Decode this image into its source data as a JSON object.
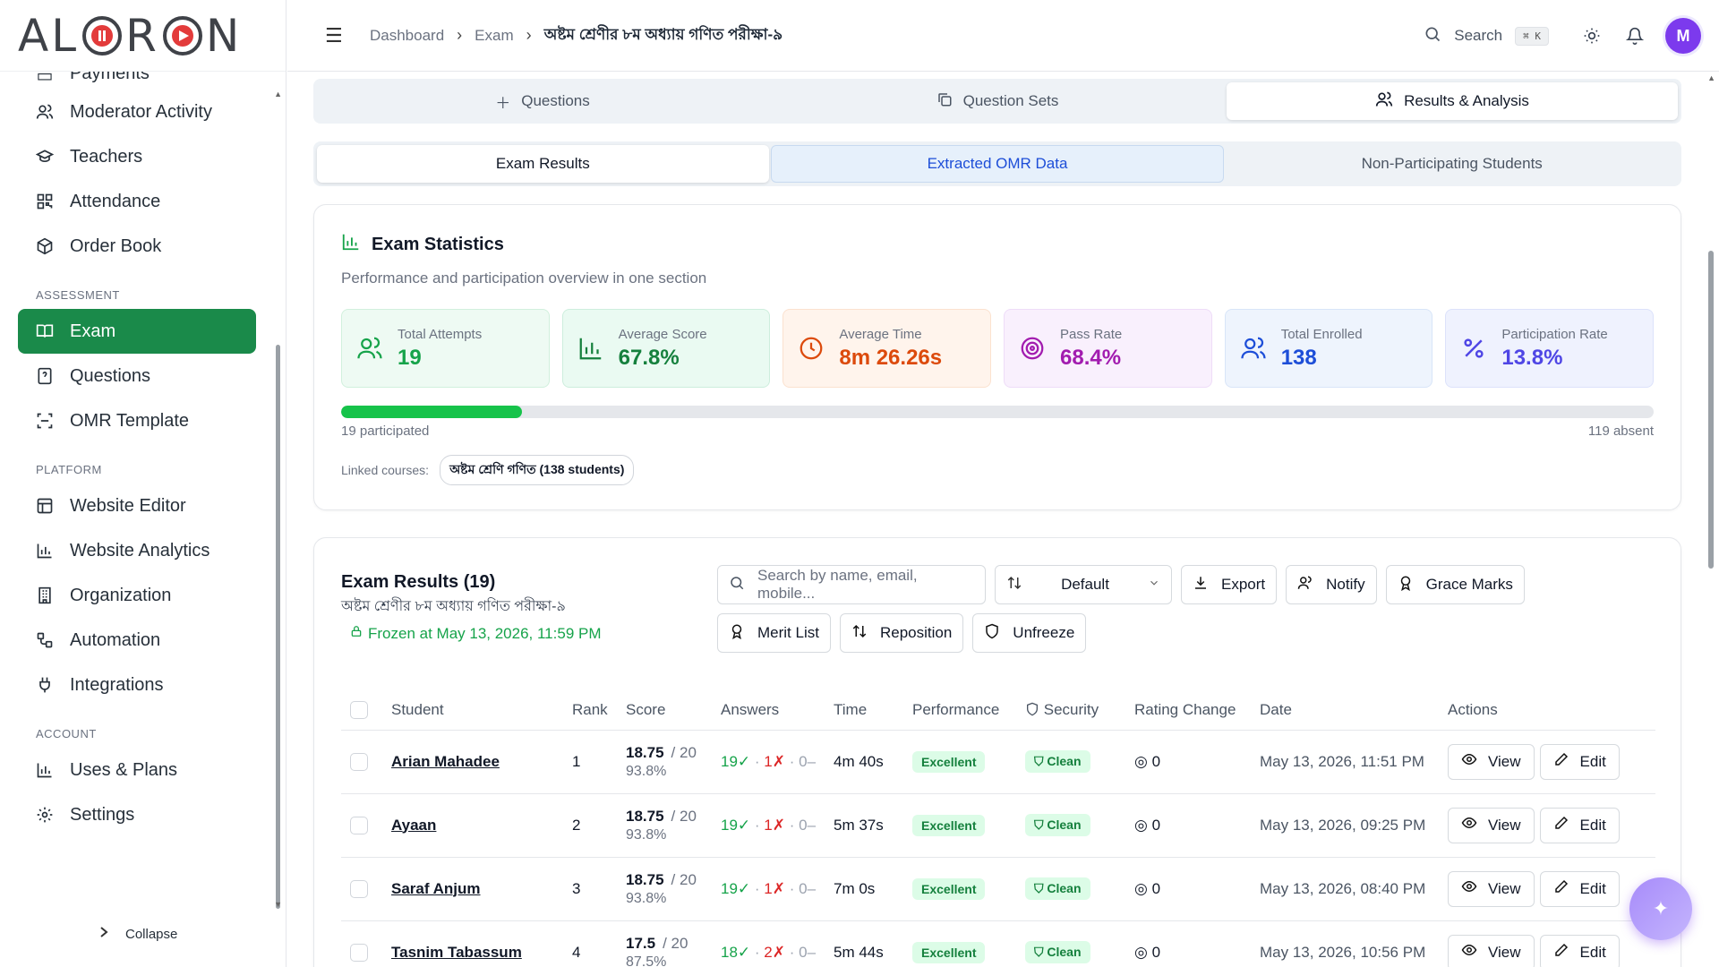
{
  "brand": {
    "logo_text": "ALORON"
  },
  "sidebar": {
    "partial_item": "Payments",
    "items_top": [
      {
        "label": "Moderator Activity",
        "icon": "users-icon"
      },
      {
        "label": "Teachers",
        "icon": "graduation-cap-icon"
      },
      {
        "label": "Attendance",
        "icon": "qr-grid-icon"
      },
      {
        "label": "Order Book",
        "icon": "box-icon"
      }
    ],
    "section_assessment": "ASSESSMENT",
    "items_assessment": [
      {
        "label": "Exam",
        "icon": "book-open-icon",
        "active": true
      },
      {
        "label": "Questions",
        "icon": "file-question-icon"
      },
      {
        "label": "OMR Template",
        "icon": "scan-icon"
      }
    ],
    "section_platform": "PLATFORM",
    "items_platform": [
      {
        "label": "Website Editor",
        "icon": "layout-icon"
      },
      {
        "label": "Website Analytics",
        "icon": "bar-chart-icon"
      },
      {
        "label": "Organization",
        "icon": "building-icon"
      },
      {
        "label": "Automation",
        "icon": "workflow-icon"
      },
      {
        "label": "Integrations",
        "icon": "plug-icon"
      }
    ],
    "section_account": "ACCOUNT",
    "items_account": [
      {
        "label": "Uses & Plans",
        "icon": "bar-chart-icon"
      },
      {
        "label": "Settings",
        "icon": "gear-icon"
      }
    ],
    "collapse_label": "Collapse",
    "accent": "#1a8a4a"
  },
  "topbar": {
    "breadcrumb": [
      "Dashboard",
      "Exam",
      "অষ্টম শ্রেণীর ৮ম অধ্যায় গণিত পরীক্ষা-৯"
    ],
    "search_label": "Search",
    "search_shortcut": "⌘ K",
    "avatar_initial": "M"
  },
  "tabs_top": [
    {
      "label": "Questions",
      "icon": "plus-icon"
    },
    {
      "label": "Question Sets",
      "icon": "copy-icon"
    },
    {
      "label": "Results & Analysis",
      "icon": "users-icon",
      "active": true
    }
  ],
  "tabs_sub": [
    {
      "label": "Exam Results",
      "active": true
    },
    {
      "label": "Extracted OMR Data",
      "highlight": true
    },
    {
      "label": "Non-Participating Students"
    }
  ],
  "stats": {
    "title": "Exam Statistics",
    "subtitle": "Performance and participation overview in one section",
    "cards": [
      {
        "label": "Total Attempts",
        "value": "19",
        "icon": "users-icon"
      },
      {
        "label": "Average Score",
        "value": "67.8%",
        "icon": "bar-chart-icon"
      },
      {
        "label": "Average Time",
        "value": "8m 26.26s",
        "icon": "clock-icon"
      },
      {
        "label": "Pass Rate",
        "value": "68.4%",
        "icon": "target-icon"
      },
      {
        "label": "Total Enrolled",
        "value": "138",
        "icon": "users-icon"
      },
      {
        "label": "Participation Rate",
        "value": "13.8%",
        "icon": "percent-icon"
      }
    ],
    "participation_fraction": 0.138,
    "participated_label": "19 participated",
    "absent_label": "119 absent",
    "linked_label": "Linked courses:",
    "linked_course": "অষ্টম শ্রেণি গণিত (138 students)"
  },
  "results": {
    "title": "Exam Results (19)",
    "exam_name": "অষ্টম শ্রেণীর ৮ম অধ্যায় গণিত পরীক্ষা-৯",
    "frozen": "Frozen at May 13, 2026, 11:59 PM",
    "search_placeholder": "Search by name, email, mobile...",
    "sort_value": "Default",
    "buttons": {
      "export": "Export",
      "notify": "Notify",
      "grace": "Grace Marks",
      "merit": "Merit List",
      "reposition": "Reposition",
      "unfreeze": "Unfreeze"
    },
    "columns": [
      "Student",
      "Rank",
      "Score",
      "Answers",
      "Time",
      "Performance",
      "Security",
      "Rating Change",
      "Date",
      "Actions"
    ],
    "rows": [
      {
        "name": "Arian Mahadee",
        "rank": "1",
        "score": "18.75",
        "of": "/ 20",
        "pct": "93.8%",
        "correct": "19✓",
        "wrong": "1✗",
        "skip": "0–",
        "time": "4m 40s",
        "perf": "Excellent",
        "security": "Clean",
        "rating": "0",
        "date": "May 13, 2026, 11:51 PM"
      },
      {
        "name": "Ayaan",
        "rank": "2",
        "score": "18.75",
        "of": "/ 20",
        "pct": "93.8%",
        "correct": "19✓",
        "wrong": "1✗",
        "skip": "0–",
        "time": "5m 37s",
        "perf": "Excellent",
        "security": "Clean",
        "rating": "0",
        "date": "May 13, 2026, 09:25 PM"
      },
      {
        "name": "Saraf Anjum",
        "rank": "3",
        "score": "18.75",
        "of": "/ 20",
        "pct": "93.8%",
        "correct": "19✓",
        "wrong": "1✗",
        "skip": "0–",
        "time": "7m 0s",
        "perf": "Excellent",
        "security": "Clean",
        "rating": "0",
        "date": "May 13, 2026, 08:40 PM"
      },
      {
        "name": "Tasnim Tabassum",
        "rank": "4",
        "score": "17.5",
        "of": "/ 20",
        "pct": "87.5%",
        "correct": "18✓",
        "wrong": "2✗",
        "skip": "0–",
        "time": "5m 44s",
        "perf": "Excellent",
        "security": "Clean",
        "rating": "0",
        "date": "May 13, 2026, 10:56 PM"
      }
    ],
    "view_label": "View",
    "edit_label": "Edit"
  }
}
